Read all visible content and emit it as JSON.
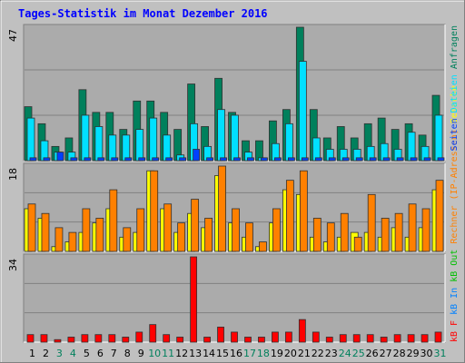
{
  "chart_data": {
    "type": "bar",
    "title": "Tages-Statistik im Monat Dezember 2016",
    "categories": [
      "1",
      "2",
      "3",
      "4",
      "5",
      "6",
      "7",
      "8",
      "9",
      "10",
      "11",
      "12",
      "13",
      "14",
      "15",
      "16",
      "17",
      "18",
      "19",
      "20",
      "21",
      "22",
      "23",
      "24",
      "25",
      "26",
      "27",
      "28",
      "29",
      "30",
      "31"
    ],
    "category_colors": [
      "#000000",
      "#000000",
      "#00805c",
      "#00805c",
      "#000000",
      "#000000",
      "#000000",
      "#000000",
      "#000000",
      "#00805c",
      "#00805c",
      "#000000",
      "#000000",
      "#000000",
      "#000000",
      "#000000",
      "#00805c",
      "#00805c",
      "#000000",
      "#000000",
      "#000000",
      "#000000",
      "#000000",
      "#00805c",
      "#00805c",
      "#000000",
      "#000000",
      "#000000",
      "#000000",
      "#000000",
      "#00805c"
    ],
    "panels": [
      {
        "type": "bar",
        "ylim": [
          0,
          47
        ],
        "yticks": [
          47
        ],
        "series": [
          {
            "name": "Anfragen",
            "color": "#00805c",
            "values": [
              19,
              13,
              5,
              8,
              25,
              17,
              17,
              11,
              21,
              21,
              17,
              11,
              27,
              12,
              29,
              17,
              7,
              7,
              14,
              18,
              47,
              18,
              8,
              12,
              8,
              13,
              15,
              11,
              13,
              9,
              23
            ]
          },
          {
            "name": "Dateien",
            "color": "#00e0ff",
            "values": [
              15,
              7,
              3,
              3,
              16,
              12,
              9,
              9,
              11,
              15,
              9,
              2,
              13,
              5,
              18,
              16,
              3,
              1,
              6,
              13,
              35,
              8,
              4,
              4,
              4,
              5,
              6,
              4,
              10,
              5,
              16
            ]
          },
          {
            "name": "Seiten",
            "color": "#0040ff",
            "values": [
              1,
              1,
              3,
              1,
              1,
              1,
              1,
              1,
              1,
              1,
              1,
              1,
              4,
              1,
              1,
              1,
              1,
              1,
              1,
              1,
              1,
              1,
              1,
              1,
              1,
              1,
              1,
              1,
              1,
              1,
              1
            ]
          }
        ]
      },
      {
        "type": "bar",
        "ylim": [
          0,
          18
        ],
        "yticks": [
          18
        ],
        "series": [
          {
            "name": "Besuche",
            "color": "#ffff00",
            "values": [
              9,
              7,
              1,
              2,
              4,
              6,
              9,
              3,
              4,
              17,
              9,
              4,
              8,
              5,
              16,
              6,
              3,
              1,
              6,
              13,
              12,
              3,
              2,
              3,
              4,
              4,
              3,
              5,
              3,
              5,
              13
            ]
          },
          {
            "name": "Rechner (IP-Adressen)",
            "color": "#ff8000",
            "values": [
              10,
              8,
              5,
              4,
              9,
              7,
              13,
              5,
              9,
              17,
              10,
              6,
              11,
              7,
              18,
              9,
              6,
              2,
              9,
              15,
              17,
              7,
              6,
              8,
              3,
              12,
              7,
              8,
              10,
              9,
              15
            ]
          }
        ]
      },
      {
        "type": "bar",
        "ylim": [
          0,
          34
        ],
        "yticks": [
          34
        ],
        "series": [
          {
            "name": "kB F",
            "color": "#ff0000",
            "values": [
              3,
              3,
              1,
              2,
              3,
              3,
              3,
              2,
              4,
              7,
              3,
              2,
              34,
              2,
              6,
              4,
              2,
              2,
              4,
              4,
              9,
              4,
              2,
              3,
              3,
              3,
              2,
              3,
              3,
              3,
              4
            ]
          }
        ],
        "legend_extra": [
          {
            "name": "kB In",
            "color": "#0080ff"
          },
          {
            "name": "kB Out",
            "color": "#00c000"
          }
        ]
      }
    ]
  }
}
